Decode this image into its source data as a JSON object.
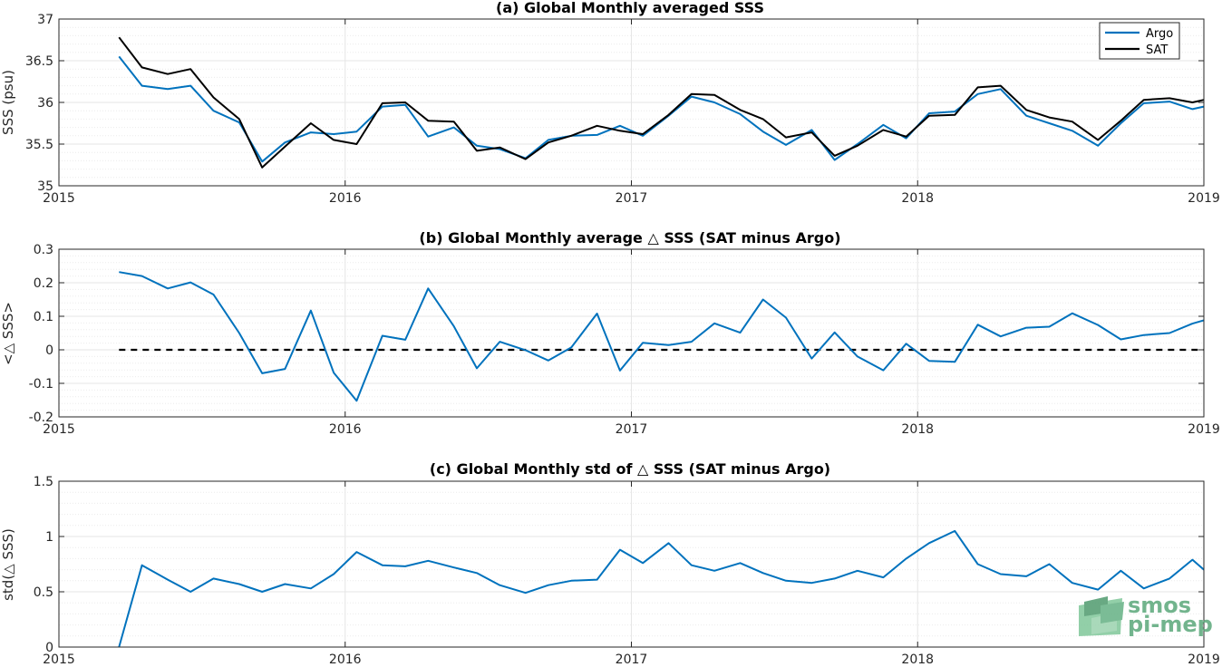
{
  "colors": {
    "argo": "#0072bd",
    "sat": "#000000",
    "grid": "#e6e6e6",
    "axis": "#262626",
    "logo": "#5aa87a"
  },
  "logo": {
    "line1": "smos",
    "line2": "pi-mep"
  },
  "chart_data": [
    {
      "type": "line",
      "title": "(a) Global Monthly averaged SSS",
      "xlabel": "",
      "ylabel": "SSS (psu)",
      "xlim": [
        2015,
        2019
      ],
      "ylim": [
        35,
        37
      ],
      "xticks": [
        "2015",
        "2016",
        "2017",
        "2018",
        "2019"
      ],
      "yticks": [
        "35",
        "35.5",
        "36",
        "36.5",
        "37"
      ],
      "yticks_values": [
        35,
        35.5,
        36,
        36.5,
        37
      ],
      "grid": true,
      "minor_grid": true,
      "legend": {
        "position": "top-right",
        "entries": [
          "Argo",
          "SAT"
        ]
      },
      "x": [
        2015.21,
        2015.29,
        2015.38,
        2015.46,
        2015.54,
        2015.63,
        2015.71,
        2015.79,
        2015.88,
        2015.96,
        2016.04,
        2016.13,
        2016.21,
        2016.29,
        2016.38,
        2016.46,
        2016.54,
        2016.63,
        2016.71,
        2016.79,
        2016.88,
        2016.96,
        2017.04,
        2017.13,
        2017.21,
        2017.29,
        2017.38,
        2017.46,
        2017.54,
        2017.63,
        2017.71,
        2017.79,
        2017.88,
        2017.96,
        2018.04,
        2018.13,
        2018.21,
        2018.29,
        2018.38,
        2018.46,
        2018.54,
        2018.63,
        2018.71,
        2018.79,
        2018.88,
        2018.96,
        2019.0
      ],
      "series": [
        {
          "name": "Argo",
          "color": "#0072bd",
          "values": [
            36.55,
            36.2,
            36.16,
            36.2,
            35.9,
            35.76,
            35.29,
            35.52,
            35.64,
            35.62,
            35.65,
            35.95,
            35.97,
            35.59,
            35.7,
            35.48,
            35.44,
            35.33,
            35.55,
            35.6,
            35.61,
            35.72,
            35.6,
            35.84,
            36.07,
            36.0,
            35.86,
            35.65,
            35.49,
            35.67,
            35.31,
            35.5,
            35.73,
            35.57,
            35.87,
            35.89,
            36.1,
            36.16,
            35.84,
            35.75,
            35.66,
            35.48,
            35.75,
            35.99,
            36.01,
            35.92,
            35.95
          ]
        },
        {
          "name": "SAT",
          "color": "#000000",
          "values": [
            36.78,
            36.42,
            36.34,
            36.4,
            36.06,
            35.8,
            35.22,
            35.47,
            35.75,
            35.55,
            35.5,
            35.99,
            36.0,
            35.78,
            35.77,
            35.42,
            35.46,
            35.32,
            35.52,
            35.6,
            35.72,
            35.66,
            35.62,
            35.85,
            36.1,
            36.09,
            35.91,
            35.8,
            35.58,
            35.64,
            35.36,
            35.48,
            35.67,
            35.59,
            35.84,
            35.85,
            36.18,
            36.2,
            35.91,
            35.82,
            35.77,
            35.55,
            35.78,
            36.03,
            36.05,
            36.0,
            36.03
          ]
        }
      ]
    },
    {
      "type": "line",
      "title": "(b) Global Monthly average △ SSS (SAT minus Argo)",
      "xlabel": "",
      "ylabel": "<△ SSS>",
      "xlim": [
        2015,
        2019
      ],
      "ylim": [
        -0.2,
        0.3
      ],
      "xticks": [
        "2015",
        "2016",
        "2017",
        "2018",
        "2019"
      ],
      "yticks": [
        "-0.2",
        "-0.1",
        "0",
        "0.1",
        "0.2",
        "0.3"
      ],
      "yticks_values": [
        -0.2,
        -0.1,
        0,
        0.1,
        0.2,
        0.3
      ],
      "grid": true,
      "minor_grid": true,
      "reference_line": {
        "y": 0,
        "x": [
          2015.21,
          2019.0
        ],
        "style": "dashed",
        "color": "#000000"
      },
      "x": [
        2015.21,
        2015.29,
        2015.38,
        2015.46,
        2015.54,
        2015.63,
        2015.71,
        2015.79,
        2015.88,
        2015.96,
        2016.04,
        2016.13,
        2016.21,
        2016.29,
        2016.38,
        2016.46,
        2016.54,
        2016.63,
        2016.71,
        2016.79,
        2016.88,
        2016.96,
        2017.04,
        2017.13,
        2017.21,
        2017.29,
        2017.38,
        2017.46,
        2017.54,
        2017.63,
        2017.71,
        2017.79,
        2017.88,
        2017.96,
        2018.04,
        2018.13,
        2018.21,
        2018.29,
        2018.38,
        2018.46,
        2018.54,
        2018.63,
        2018.71,
        2018.79,
        2018.88,
        2018.96,
        2019.0
      ],
      "series": [
        {
          "color": "#0072bd",
          "values": [
            0.232,
            0.22,
            0.183,
            0.201,
            0.165,
            0.05,
            -0.07,
            -0.057,
            0.117,
            -0.068,
            -0.152,
            0.042,
            0.03,
            0.183,
            0.07,
            -0.055,
            0.024,
            -0.001,
            -0.032,
            0.007,
            0.108,
            -0.062,
            0.021,
            0.014,
            0.024,
            0.079,
            0.051,
            0.15,
            0.096,
            -0.026,
            0.052,
            -0.02,
            -0.061,
            0.018,
            -0.033,
            -0.036,
            0.075,
            0.04,
            0.066,
            0.069,
            0.109,
            0.074,
            0.031,
            0.044,
            0.05,
            0.078,
            0.088
          ]
        }
      ]
    },
    {
      "type": "line",
      "title": "(c) Global Monthly std of △ SSS (SAT minus Argo)",
      "xlabel": "",
      "ylabel": "std(△ SSS)",
      "xlim": [
        2015,
        2019
      ],
      "ylim": [
        0,
        1.5
      ],
      "xticks": [
        "2015",
        "2016",
        "2017",
        "2018",
        "2019"
      ],
      "yticks": [
        "0",
        "0.5",
        "1",
        "1.5"
      ],
      "yticks_values": [
        0,
        0.5,
        1,
        1.5
      ],
      "grid": true,
      "minor_grid": true,
      "x": [
        2015.21,
        2015.29,
        2015.38,
        2015.46,
        2015.54,
        2015.63,
        2015.71,
        2015.79,
        2015.88,
        2015.96,
        2016.04,
        2016.13,
        2016.21,
        2016.29,
        2016.38,
        2016.46,
        2016.54,
        2016.63,
        2016.71,
        2016.79,
        2016.88,
        2016.96,
        2017.04,
        2017.13,
        2017.21,
        2017.29,
        2017.38,
        2017.46,
        2017.54,
        2017.63,
        2017.71,
        2017.79,
        2017.88,
        2017.96,
        2018.04,
        2018.13,
        2018.21,
        2018.29,
        2018.38,
        2018.46,
        2018.54,
        2018.63,
        2018.71,
        2018.79,
        2018.88,
        2018.96,
        2019.0
      ],
      "series": [
        {
          "color": "#0072bd",
          "values": [
            0.0,
            0.74,
            0.61,
            0.5,
            0.62,
            0.57,
            0.5,
            0.57,
            0.53,
            0.66,
            0.86,
            0.74,
            0.73,
            0.78,
            0.72,
            0.67,
            0.56,
            0.49,
            0.56,
            0.6,
            0.61,
            0.88,
            0.76,
            0.94,
            0.74,
            0.69,
            0.76,
            0.67,
            0.6,
            0.58,
            0.62,
            0.69,
            0.63,
            0.8,
            0.94,
            1.05,
            0.75,
            0.66,
            0.64,
            0.75,
            0.58,
            0.52,
            0.69,
            0.53,
            0.62,
            0.79,
            0.7
          ]
        }
      ]
    }
  ]
}
